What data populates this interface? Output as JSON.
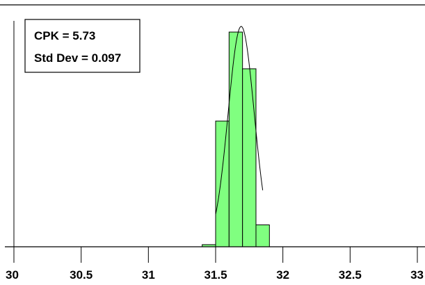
{
  "chart_data": {
    "type": "bar",
    "subtype": "histogram",
    "annotations": {
      "cpk": "CPK = 5.73",
      "std_dev": "Std Dev = 0.097"
    },
    "x_ticks": [
      30,
      30.5,
      31,
      31.5,
      32,
      32.5,
      33
    ],
    "x_tick_labels": [
      "30",
      "30.5",
      "31",
      "31.5",
      "32",
      "32.5",
      "33"
    ],
    "xlim": [
      30,
      33
    ],
    "ylim": [
      0,
      31
    ],
    "bin_width": 0.1,
    "bins": [
      {
        "start": 31.4,
        "end": 31.5,
        "count": 0.3
      },
      {
        "start": 31.5,
        "end": 31.6,
        "count": 17.8
      },
      {
        "start": 31.6,
        "end": 31.7,
        "count": 30.4
      },
      {
        "start": 31.7,
        "end": 31.8,
        "count": 25.2
      },
      {
        "start": 31.8,
        "end": 31.9,
        "count": 3.1
      }
    ],
    "normal_curve": {
      "mean": 31.69,
      "std_dev": 0.097,
      "peak": 31.2,
      "range": [
        31.5,
        31.85
      ]
    },
    "bar_color": "#80ff80",
    "bar_edge_color": "#000000",
    "curve_color": "#000000",
    "grid": false,
    "legend": "none"
  }
}
